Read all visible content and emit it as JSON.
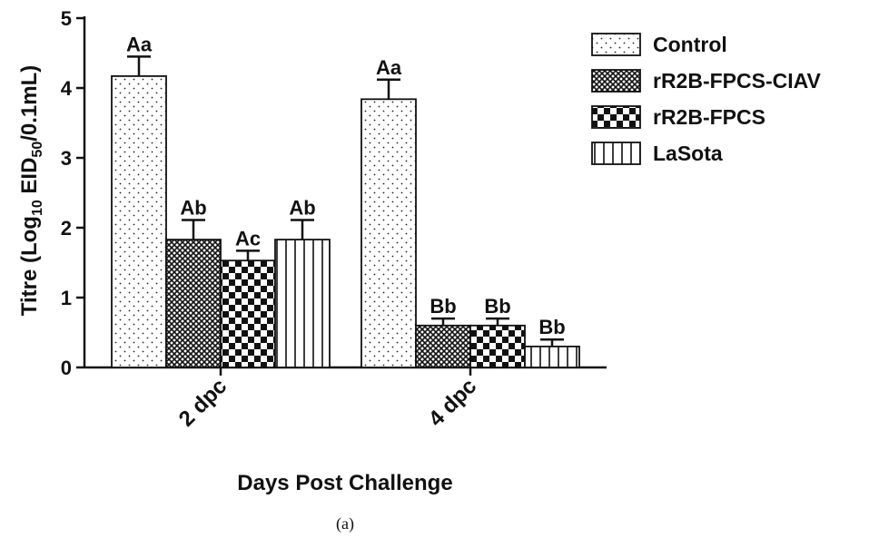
{
  "chart_data": {
    "type": "bar",
    "categories": [
      "2 dpc",
      "4 dpc"
    ],
    "series": [
      {
        "name": "Control",
        "values": [
          4.17,
          3.84
        ],
        "errors": [
          0.28,
          0.28
        ],
        "labels": [
          "Aa",
          "Aa"
        ],
        "pattern": "dots"
      },
      {
        "name": "rR2B-FPCS-CIAV",
        "values": [
          1.83,
          0.6
        ],
        "errors": [
          0.28,
          0.1
        ],
        "labels": [
          "Ab",
          "Bb"
        ],
        "pattern": "crosshatch"
      },
      {
        "name": "rR2B-FPCS",
        "values": [
          1.53,
          0.6
        ],
        "errors": [
          0.14,
          0.1
        ],
        "labels": [
          "Ac",
          "Bb"
        ],
        "pattern": "checker"
      },
      {
        "name": "LaSota",
        "values": [
          1.83,
          0.3
        ],
        "errors": [
          0.28,
          0.1
        ],
        "labels": [
          "Ab",
          "Bb"
        ],
        "pattern": "vlines"
      }
    ],
    "ylabel_prefix": "Titre (Log",
    "ylabel_sub1": "10",
    "ylabel_mid": " EID",
    "ylabel_sub2": "50",
    "ylabel_suffix": "/0.1mL)",
    "xlabel": "Days Post Challenge",
    "ylim": [
      0,
      5
    ],
    "yticks": [
      0,
      1,
      2,
      3,
      4,
      5
    ],
    "legend_position": "top-right",
    "grid": false
  },
  "caption": "(a)"
}
